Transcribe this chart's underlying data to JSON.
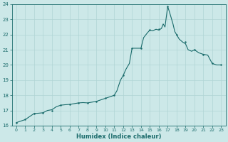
{
  "x": [
    0,
    1,
    2,
    3,
    4,
    5,
    6,
    7,
    8,
    9,
    10,
    11,
    12,
    13,
    14,
    15,
    16,
    17,
    18,
    19,
    20,
    21,
    22,
    23
  ],
  "y": [
    16.2,
    16.4,
    16.8,
    16.85,
    17.0,
    17.35,
    17.4,
    17.5,
    17.5,
    17.6,
    17.8,
    18.0,
    19.3,
    21.1,
    21.1,
    22.3,
    22.35,
    23.85,
    22.0,
    21.5,
    21.0,
    20.7,
    20.1,
    20.0
  ],
  "bg_color": "#cce8e8",
  "grid_color": "#b0d4d4",
  "line_color": "#1a6b6b",
  "marker_color": "#1a6b6b",
  "xlabel": "Humidex (Indice chaleur)",
  "ylim": [
    16,
    24
  ],
  "xlim": [
    -0.5,
    23.5
  ],
  "yticks": [
    16,
    17,
    18,
    19,
    20,
    21,
    22,
    23,
    24
  ],
  "xticks": [
    0,
    1,
    2,
    3,
    4,
    5,
    6,
    7,
    8,
    9,
    10,
    11,
    12,
    13,
    14,
    15,
    16,
    17,
    18,
    19,
    20,
    21,
    22,
    23
  ],
  "tick_color": "#1a6b6b",
  "label_color": "#1a6b6b",
  "x_detailed": [
    0,
    0.5,
    1,
    1.5,
    2,
    2.5,
    3,
    3.5,
    4,
    4.5,
    5,
    5.5,
    6,
    6.5,
    7,
    7.5,
    8,
    8.5,
    9,
    9.5,
    10,
    10.5,
    11,
    11.3,
    11.7,
    12,
    12.3,
    12.7,
    13,
    13.3,
    13.7,
    14,
    14.3,
    14.7,
    15,
    15.3,
    15.7,
    16,
    16.3,
    16.5,
    16.7,
    17,
    17.2,
    17.4,
    17.6,
    17.8,
    18,
    18.3,
    18.7,
    19,
    19.3,
    19.7,
    20,
    20.5,
    21,
    21.5,
    22,
    22.5,
    23
  ],
  "y_detailed": [
    16.2,
    16.3,
    16.4,
    16.6,
    16.8,
    16.82,
    16.85,
    17.0,
    17.05,
    17.25,
    17.35,
    17.38,
    17.4,
    17.45,
    17.5,
    17.52,
    17.5,
    17.55,
    17.6,
    17.7,
    17.8,
    17.9,
    18.0,
    18.3,
    19.0,
    19.3,
    19.7,
    20.1,
    21.1,
    21.1,
    21.1,
    21.1,
    21.8,
    22.1,
    22.3,
    22.25,
    22.35,
    22.3,
    22.4,
    22.7,
    22.5,
    23.85,
    23.5,
    23.1,
    22.7,
    22.2,
    22.0,
    21.7,
    21.5,
    21.4,
    21.0,
    20.9,
    21.0,
    20.8,
    20.7,
    20.65,
    20.1,
    20.0,
    20.0
  ]
}
